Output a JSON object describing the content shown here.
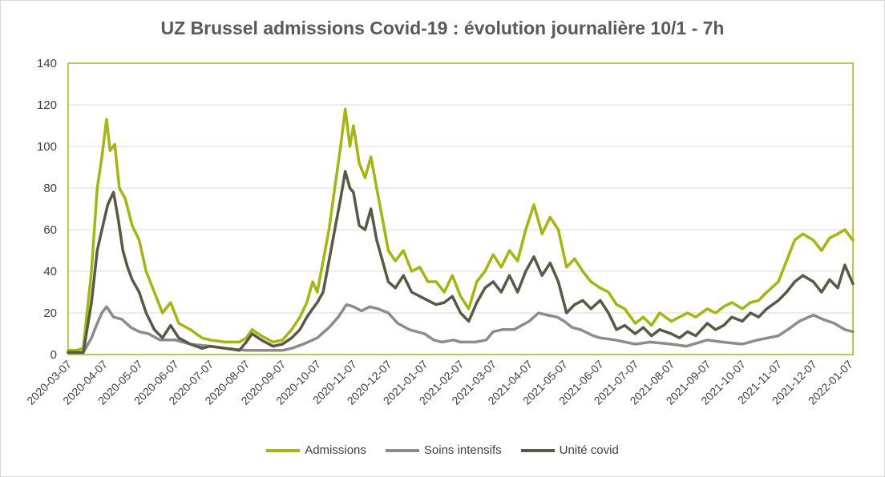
{
  "chart_data": {
    "type": "line",
    "title": "UZ Brussel admissions Covid-19 : évolution journalière 10/1 - 7h",
    "xlabel": "",
    "ylabel": "",
    "ylim": [
      0,
      140
    ],
    "yticks": [
      0,
      20,
      40,
      60,
      80,
      100,
      120,
      140
    ],
    "x_range": [
      "2020-03-07",
      "2022-01-10"
    ],
    "xticks": [
      "2020-03-07",
      "2020-04-07",
      "2020-05-07",
      "2020-06-07",
      "2020-07-07",
      "2020-08-07",
      "2020-09-07",
      "2020-10-07",
      "2020-11-07",
      "2020-12-07",
      "2021-01-07",
      "2021-02-07",
      "2021-03-07",
      "2021-04-07",
      "2021-05-07",
      "2021-06-07",
      "2021-07-07",
      "2021-08-07",
      "2021-09-07",
      "2021-10-07",
      "2021-11-07",
      "2021-12-07",
      "2022-01-07"
    ],
    "grid": true,
    "legend_position": "bottom",
    "series": [
      {
        "name": "Admissions",
        "color": "#a5b513",
        "points": [
          [
            "2020-03-07",
            2
          ],
          [
            "2020-03-14",
            2
          ],
          [
            "2020-03-20",
            3
          ],
          [
            "2020-03-27",
            40
          ],
          [
            "2020-04-01",
            80
          ],
          [
            "2020-04-05",
            95
          ],
          [
            "2020-04-09",
            113
          ],
          [
            "2020-04-12",
            98
          ],
          [
            "2020-04-16",
            101
          ],
          [
            "2020-04-20",
            80
          ],
          [
            "2020-04-25",
            75
          ],
          [
            "2020-05-01",
            62
          ],
          [
            "2020-05-07",
            55
          ],
          [
            "2020-05-13",
            40
          ],
          [
            "2020-05-20",
            30
          ],
          [
            "2020-05-27",
            20
          ],
          [
            "2020-06-03",
            25
          ],
          [
            "2020-06-10",
            15
          ],
          [
            "2020-06-20",
            12
          ],
          [
            "2020-06-30",
            8
          ],
          [
            "2020-07-07",
            7
          ],
          [
            "2020-07-20",
            6
          ],
          [
            "2020-08-01",
            6
          ],
          [
            "2020-08-07",
            8
          ],
          [
            "2020-08-12",
            12
          ],
          [
            "2020-08-20",
            9
          ],
          [
            "2020-08-30",
            6
          ],
          [
            "2020-09-07",
            7
          ],
          [
            "2020-09-15",
            12
          ],
          [
            "2020-09-22",
            18
          ],
          [
            "2020-09-28",
            25
          ],
          [
            "2020-10-03",
            35
          ],
          [
            "2020-10-07",
            30
          ],
          [
            "2020-10-12",
            45
          ],
          [
            "2020-10-17",
            60
          ],
          [
            "2020-10-22",
            80
          ],
          [
            "2020-10-27",
            100
          ],
          [
            "2020-10-31",
            118
          ],
          [
            "2020-11-04",
            100
          ],
          [
            "2020-11-07",
            110
          ],
          [
            "2020-11-12",
            92
          ],
          [
            "2020-11-17",
            85
          ],
          [
            "2020-11-22",
            95
          ],
          [
            "2020-11-27",
            80
          ],
          [
            "2020-12-02",
            65
          ],
          [
            "2020-12-07",
            50
          ],
          [
            "2020-12-13",
            45
          ],
          [
            "2020-12-20",
            50
          ],
          [
            "2020-12-27",
            40
          ],
          [
            "2021-01-03",
            42
          ],
          [
            "2021-01-10",
            35
          ],
          [
            "2021-01-17",
            35
          ],
          [
            "2021-01-24",
            30
          ],
          [
            "2021-01-31",
            38
          ],
          [
            "2021-02-07",
            28
          ],
          [
            "2021-02-14",
            22
          ],
          [
            "2021-02-21",
            35
          ],
          [
            "2021-02-28",
            40
          ],
          [
            "2021-03-07",
            48
          ],
          [
            "2021-03-14",
            42
          ],
          [
            "2021-03-21",
            50
          ],
          [
            "2021-03-28",
            45
          ],
          [
            "2021-04-04",
            60
          ],
          [
            "2021-04-11",
            72
          ],
          [
            "2021-04-18",
            58
          ],
          [
            "2021-04-25",
            66
          ],
          [
            "2021-05-02",
            60
          ],
          [
            "2021-05-09",
            42
          ],
          [
            "2021-05-16",
            46
          ],
          [
            "2021-05-23",
            40
          ],
          [
            "2021-05-30",
            35
          ],
          [
            "2021-06-07",
            32
          ],
          [
            "2021-06-14",
            30
          ],
          [
            "2021-06-21",
            24
          ],
          [
            "2021-06-28",
            22
          ],
          [
            "2021-07-07",
            15
          ],
          [
            "2021-07-14",
            18
          ],
          [
            "2021-07-21",
            14
          ],
          [
            "2021-07-28",
            20
          ],
          [
            "2021-08-07",
            16
          ],
          [
            "2021-08-14",
            18
          ],
          [
            "2021-08-21",
            20
          ],
          [
            "2021-08-28",
            18
          ],
          [
            "2021-09-07",
            22
          ],
          [
            "2021-09-14",
            20
          ],
          [
            "2021-09-21",
            23
          ],
          [
            "2021-09-28",
            25
          ],
          [
            "2021-10-07",
            22
          ],
          [
            "2021-10-14",
            25
          ],
          [
            "2021-10-21",
            26
          ],
          [
            "2021-10-28",
            30
          ],
          [
            "2021-11-07",
            35
          ],
          [
            "2021-11-14",
            45
          ],
          [
            "2021-11-21",
            55
          ],
          [
            "2021-11-28",
            58
          ],
          [
            "2021-12-07",
            55
          ],
          [
            "2021-12-14",
            50
          ],
          [
            "2021-12-21",
            56
          ],
          [
            "2021-12-28",
            58
          ],
          [
            "2022-01-03",
            60
          ],
          [
            "2022-01-10",
            55
          ]
        ]
      },
      {
        "name": "Soins intensifs",
        "color": "#8c8c8c",
        "points": [
          [
            "2020-03-07",
            1
          ],
          [
            "2020-03-14",
            1
          ],
          [
            "2020-03-20",
            1
          ],
          [
            "2020-03-27",
            8
          ],
          [
            "2020-04-01",
            15
          ],
          [
            "2020-04-05",
            20
          ],
          [
            "2020-04-09",
            23
          ],
          [
            "2020-04-15",
            18
          ],
          [
            "2020-04-22",
            17
          ],
          [
            "2020-04-30",
            13
          ],
          [
            "2020-05-07",
            11
          ],
          [
            "2020-05-15",
            10
          ],
          [
            "2020-05-25",
            7
          ],
          [
            "2020-06-07",
            7
          ],
          [
            "2020-06-20",
            5
          ],
          [
            "2020-07-07",
            4
          ],
          [
            "2020-07-20",
            3
          ],
          [
            "2020-08-07",
            2
          ],
          [
            "2020-08-20",
            2
          ],
          [
            "2020-09-07",
            2
          ],
          [
            "2020-09-15",
            3
          ],
          [
            "2020-09-25",
            5
          ],
          [
            "2020-10-07",
            8
          ],
          [
            "2020-10-17",
            13
          ],
          [
            "2020-10-25",
            18
          ],
          [
            "2020-11-01",
            24
          ],
          [
            "2020-11-07",
            23
          ],
          [
            "2020-11-14",
            21
          ],
          [
            "2020-11-21",
            23
          ],
          [
            "2020-11-28",
            22
          ],
          [
            "2020-12-07",
            20
          ],
          [
            "2020-12-15",
            15
          ],
          [
            "2020-12-25",
            12
          ],
          [
            "2021-01-07",
            10
          ],
          [
            "2021-01-15",
            7
          ],
          [
            "2021-01-22",
            6
          ],
          [
            "2021-02-01",
            7
          ],
          [
            "2021-02-07",
            6
          ],
          [
            "2021-02-20",
            6
          ],
          [
            "2021-03-01",
            7
          ],
          [
            "2021-03-07",
            11
          ],
          [
            "2021-03-15",
            12
          ],
          [
            "2021-03-25",
            12
          ],
          [
            "2021-04-07",
            16
          ],
          [
            "2021-04-15",
            20
          ],
          [
            "2021-04-22",
            19
          ],
          [
            "2021-05-01",
            18
          ],
          [
            "2021-05-07",
            16
          ],
          [
            "2021-05-14",
            13
          ],
          [
            "2021-05-21",
            12
          ],
          [
            "2021-06-01",
            9
          ],
          [
            "2021-06-07",
            8
          ],
          [
            "2021-06-20",
            7
          ],
          [
            "2021-07-07",
            5
          ],
          [
            "2021-07-20",
            6
          ],
          [
            "2021-08-07",
            5
          ],
          [
            "2021-08-20",
            4
          ],
          [
            "2021-09-07",
            7
          ],
          [
            "2021-09-20",
            6
          ],
          [
            "2021-10-07",
            5
          ],
          [
            "2021-10-20",
            7
          ],
          [
            "2021-11-07",
            9
          ],
          [
            "2021-11-15",
            12
          ],
          [
            "2021-11-25",
            16
          ],
          [
            "2021-12-07",
            19
          ],
          [
            "2021-12-15",
            17
          ],
          [
            "2021-12-25",
            15
          ],
          [
            "2022-01-03",
            12
          ],
          [
            "2022-01-10",
            11
          ]
        ]
      },
      {
        "name": "Unité covid",
        "color": "#565a46",
        "points": [
          [
            "2020-03-07",
            1
          ],
          [
            "2020-03-14",
            1
          ],
          [
            "2020-03-20",
            1
          ],
          [
            "2020-03-27",
            25
          ],
          [
            "2020-04-01",
            50
          ],
          [
            "2020-04-05",
            60
          ],
          [
            "2020-04-10",
            72
          ],
          [
            "2020-04-15",
            78
          ],
          [
            "2020-04-19",
            65
          ],
          [
            "2020-04-23",
            50
          ],
          [
            "2020-04-27",
            42
          ],
          [
            "2020-05-01",
            36
          ],
          [
            "2020-05-07",
            30
          ],
          [
            "2020-05-13",
            20
          ],
          [
            "2020-05-20",
            12
          ],
          [
            "2020-05-27",
            8
          ],
          [
            "2020-06-03",
            14
          ],
          [
            "2020-06-10",
            8
          ],
          [
            "2020-06-20",
            5
          ],
          [
            "2020-06-30",
            3
          ],
          [
            "2020-07-07",
            4
          ],
          [
            "2020-07-20",
            3
          ],
          [
            "2020-08-01",
            2
          ],
          [
            "2020-08-07",
            6
          ],
          [
            "2020-08-12",
            10
          ],
          [
            "2020-08-20",
            7
          ],
          [
            "2020-08-30",
            4
          ],
          [
            "2020-09-07",
            5
          ],
          [
            "2020-09-15",
            8
          ],
          [
            "2020-09-22",
            12
          ],
          [
            "2020-09-28",
            18
          ],
          [
            "2020-10-03",
            22
          ],
          [
            "2020-10-07",
            25
          ],
          [
            "2020-10-12",
            30
          ],
          [
            "2020-10-17",
            45
          ],
          [
            "2020-10-22",
            60
          ],
          [
            "2020-10-27",
            75
          ],
          [
            "2020-10-31",
            88
          ],
          [
            "2020-11-04",
            80
          ],
          [
            "2020-11-07",
            78
          ],
          [
            "2020-11-12",
            62
          ],
          [
            "2020-11-17",
            60
          ],
          [
            "2020-11-22",
            70
          ],
          [
            "2020-11-27",
            55
          ],
          [
            "2020-12-02",
            45
          ],
          [
            "2020-12-07",
            35
          ],
          [
            "2020-12-13",
            32
          ],
          [
            "2020-12-20",
            38
          ],
          [
            "2020-12-27",
            30
          ],
          [
            "2021-01-03",
            28
          ],
          [
            "2021-01-10",
            26
          ],
          [
            "2021-01-17",
            24
          ],
          [
            "2021-01-24",
            25
          ],
          [
            "2021-01-31",
            28
          ],
          [
            "2021-02-07",
            20
          ],
          [
            "2021-02-14",
            16
          ],
          [
            "2021-02-21",
            25
          ],
          [
            "2021-02-28",
            32
          ],
          [
            "2021-03-07",
            35
          ],
          [
            "2021-03-14",
            30
          ],
          [
            "2021-03-21",
            38
          ],
          [
            "2021-03-28",
            30
          ],
          [
            "2021-04-04",
            40
          ],
          [
            "2021-04-11",
            47
          ],
          [
            "2021-04-18",
            38
          ],
          [
            "2021-04-25",
            44
          ],
          [
            "2021-05-02",
            35
          ],
          [
            "2021-05-09",
            20
          ],
          [
            "2021-05-16",
            24
          ],
          [
            "2021-05-23",
            26
          ],
          [
            "2021-05-30",
            22
          ],
          [
            "2021-06-07",
            26
          ],
          [
            "2021-06-14",
            20
          ],
          [
            "2021-06-21",
            12
          ],
          [
            "2021-06-28",
            14
          ],
          [
            "2021-07-07",
            10
          ],
          [
            "2021-07-14",
            13
          ],
          [
            "2021-07-21",
            9
          ],
          [
            "2021-07-28",
            12
          ],
          [
            "2021-08-07",
            10
          ],
          [
            "2021-08-14",
            8
          ],
          [
            "2021-08-21",
            11
          ],
          [
            "2021-08-28",
            9
          ],
          [
            "2021-09-07",
            15
          ],
          [
            "2021-09-14",
            12
          ],
          [
            "2021-09-21",
            14
          ],
          [
            "2021-09-28",
            18
          ],
          [
            "2021-10-07",
            16
          ],
          [
            "2021-10-14",
            20
          ],
          [
            "2021-10-21",
            18
          ],
          [
            "2021-10-28",
            22
          ],
          [
            "2021-11-07",
            26
          ],
          [
            "2021-11-14",
            30
          ],
          [
            "2021-11-21",
            35
          ],
          [
            "2021-11-28",
            38
          ],
          [
            "2021-12-07",
            35
          ],
          [
            "2021-12-14",
            30
          ],
          [
            "2021-12-21",
            36
          ],
          [
            "2021-12-28",
            32
          ],
          [
            "2022-01-03",
            43
          ],
          [
            "2022-01-10",
            34
          ]
        ]
      }
    ]
  }
}
